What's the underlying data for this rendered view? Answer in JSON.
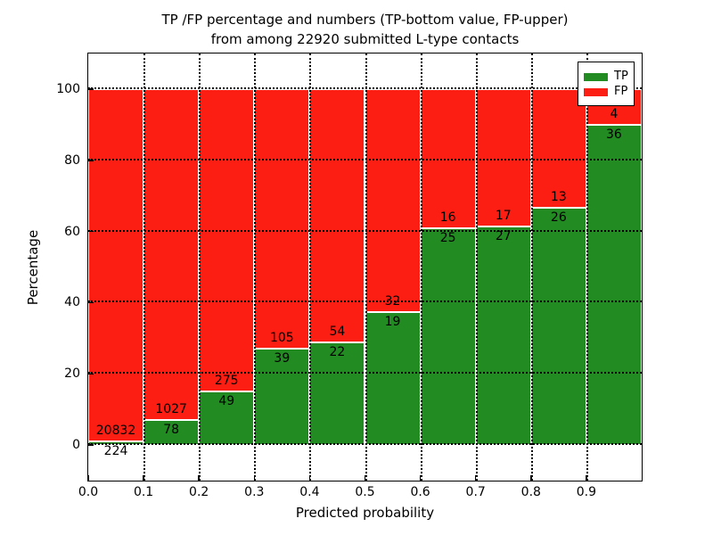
{
  "figure": {
    "title_line1": "TP /FP percentage and numbers (TP-bottom value, FP-upper)",
    "title_line2": "from among 22920 submitted L-type contacts",
    "background": "#ffffff"
  },
  "axes": {
    "xlabel": "Predicted probability",
    "ylabel": "Percentage",
    "x_tick_labels": [
      "0.0",
      "0.1",
      "0.2",
      "0.3",
      "0.4",
      "0.5",
      "0.6",
      "0.7",
      "0.8",
      "0.9"
    ],
    "y_tick_labels": [
      "0",
      "20",
      "40",
      "60",
      "80",
      "100"
    ],
    "y_tick_values": [
      0,
      20,
      40,
      60,
      80,
      100
    ],
    "xlim": [
      0.0,
      1.0
    ],
    "ylim": [
      -10,
      110
    ]
  },
  "legend": {
    "position": "upper right",
    "entries": [
      {
        "label": "TP",
        "color": "#228b22"
      },
      {
        "label": "FP",
        "color": "#fc1d13"
      }
    ]
  },
  "colors": {
    "tp": "#228b22",
    "fp": "#fc1d13",
    "bar_edge": "#ffffff",
    "grid": "#000000",
    "spine": "#000000"
  },
  "chart_data": {
    "type": "bar",
    "stacked": true,
    "normalized": "each bin scaled to 100 percent, counts shown as labels",
    "title": "TP /FP percentage and numbers (TP-bottom value, FP-upper) from among 22920 submitted L-type contacts",
    "xlabel": "Predicted probability",
    "ylabel": "Percentage",
    "total_contacts": 22920,
    "bin_width": 0.1,
    "grid": {
      "style": "dotted",
      "color": "#000000",
      "drawn_over_bars": true
    },
    "ylim": [
      -10,
      110
    ],
    "xlim": [
      0.0,
      1.0
    ],
    "legend_position": "upper right",
    "series_names": [
      "TP",
      "FP"
    ],
    "bins": [
      {
        "x_start": 0.0,
        "tp": 224,
        "fp": 20832,
        "tp_percent": 1.06,
        "fp_percent": 98.94
      },
      {
        "x_start": 0.1,
        "tp": 78,
        "fp": 1027,
        "tp_percent": 7.06,
        "fp_percent": 92.94
      },
      {
        "x_start": 0.2,
        "tp": 49,
        "fp": 275,
        "tp_percent": 15.12,
        "fp_percent": 84.88
      },
      {
        "x_start": 0.3,
        "tp": 39,
        "fp": 105,
        "tp_percent": 27.08,
        "fp_percent": 72.92
      },
      {
        "x_start": 0.4,
        "tp": 22,
        "fp": 54,
        "tp_percent": 28.95,
        "fp_percent": 71.05
      },
      {
        "x_start": 0.5,
        "tp": 19,
        "fp": 32,
        "tp_percent": 37.25,
        "fp_percent": 62.75
      },
      {
        "x_start": 0.6,
        "tp": 25,
        "fp": 16,
        "tp_percent": 60.98,
        "fp_percent": 39.02
      },
      {
        "x_start": 0.7,
        "tp": 27,
        "fp": 17,
        "tp_percent": 61.36,
        "fp_percent": 38.64
      },
      {
        "x_start": 0.8,
        "tp": 26,
        "fp": 13,
        "tp_percent": 66.67,
        "fp_percent": 33.33
      },
      {
        "x_start": 0.9,
        "tp": 36,
        "fp": 4,
        "tp_percent": 90.0,
        "fp_percent": 10.0
      }
    ]
  }
}
